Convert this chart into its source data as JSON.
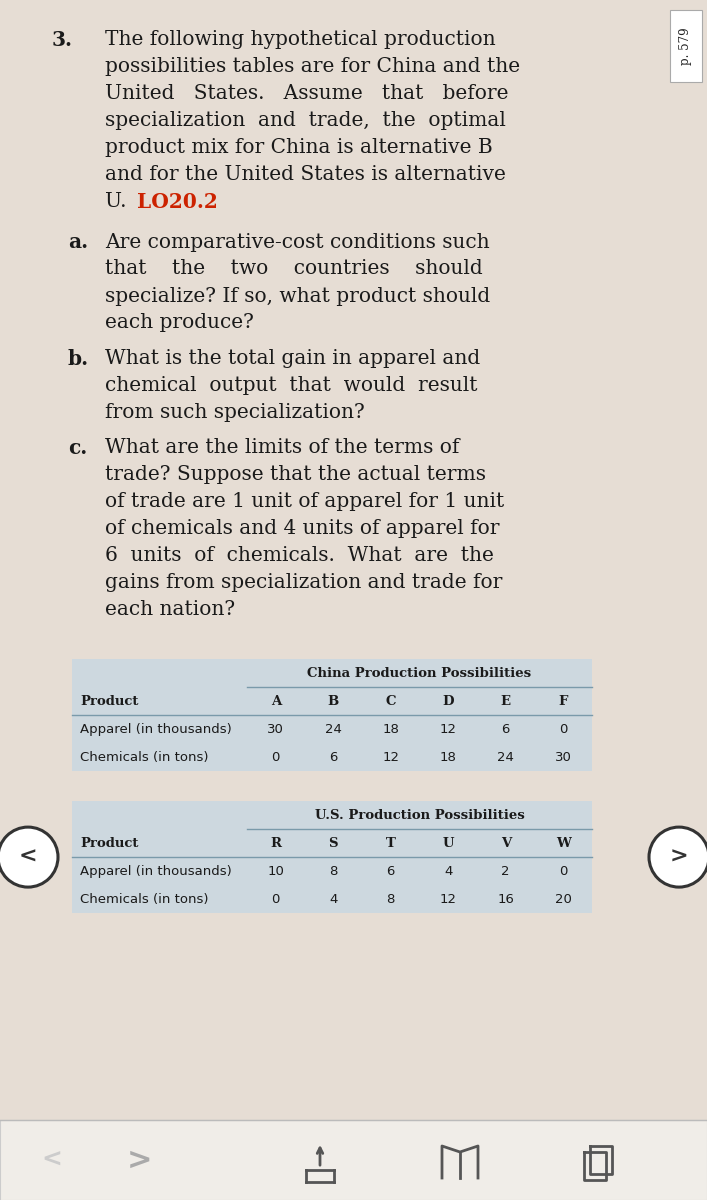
{
  "background_color": "#e6ddd4",
  "table_bg": "#b8c4cc",
  "table_header_bg": "#a8b8c2",
  "question_number": "3.",
  "intro_lines": [
    "The following hypothetical production",
    "possibilities tables are for China and the",
    "United   States.   Assume   that   before",
    "specialization  and  trade,  the  optimal",
    "product mix for China is alternative B",
    "and for the United States is alternative",
    "U. "
  ],
  "lo_text": "LO20.2",
  "lo_color": "#cc2200",
  "part_a_label": "a.",
  "part_a_lines": [
    "Are comparative-cost conditions such",
    "that    the    two    countries    should",
    "specialize? If so, what product should",
    "each produce?"
  ],
  "part_b_label": "b.",
  "part_b_lines": [
    "What is the total gain in apparel and",
    "chemical  output  that  would  result",
    "from such specialization?"
  ],
  "part_c_label": "c.",
  "part_c_lines": [
    "What are the limits of the terms of",
    "trade? Suppose that the actual terms",
    "of trade are 1 unit of apparel for 1 unit",
    "of chemicals and 4 units of apparel for",
    "6  units  of  chemicals.  What  are  the",
    "gains from specialization and trade for",
    "each nation?"
  ],
  "china_table": {
    "title": "China Production Possibilities",
    "columns": [
      "A",
      "B",
      "C",
      "D",
      "E",
      "F"
    ],
    "rows": [
      {
        "label": "Apparel (in thousands)",
        "values": [
          "30",
          "24",
          "18",
          "12",
          "6",
          "0"
        ]
      },
      {
        "label": "Chemicals (in tons)",
        "values": [
          "0",
          "6",
          "12",
          "18",
          "24",
          "30"
        ]
      }
    ]
  },
  "us_table": {
    "title": "U.S. Production Possibilities",
    "columns": [
      "R",
      "S",
      "T",
      "U",
      "V",
      "W"
    ],
    "rows": [
      {
        "label": "Apparel (in thousands)",
        "values": [
          "10",
          "8",
          "6",
          "4",
          "2",
          "0"
        ]
      },
      {
        "label": "Chemicals (in tons)",
        "values": [
          "0",
          "4",
          "8",
          "12",
          "16",
          "20"
        ]
      }
    ]
  },
  "page_label": "p. 579",
  "bottom_bar_color": "#f0ede8",
  "bottom_bar_border": "#cccccc"
}
